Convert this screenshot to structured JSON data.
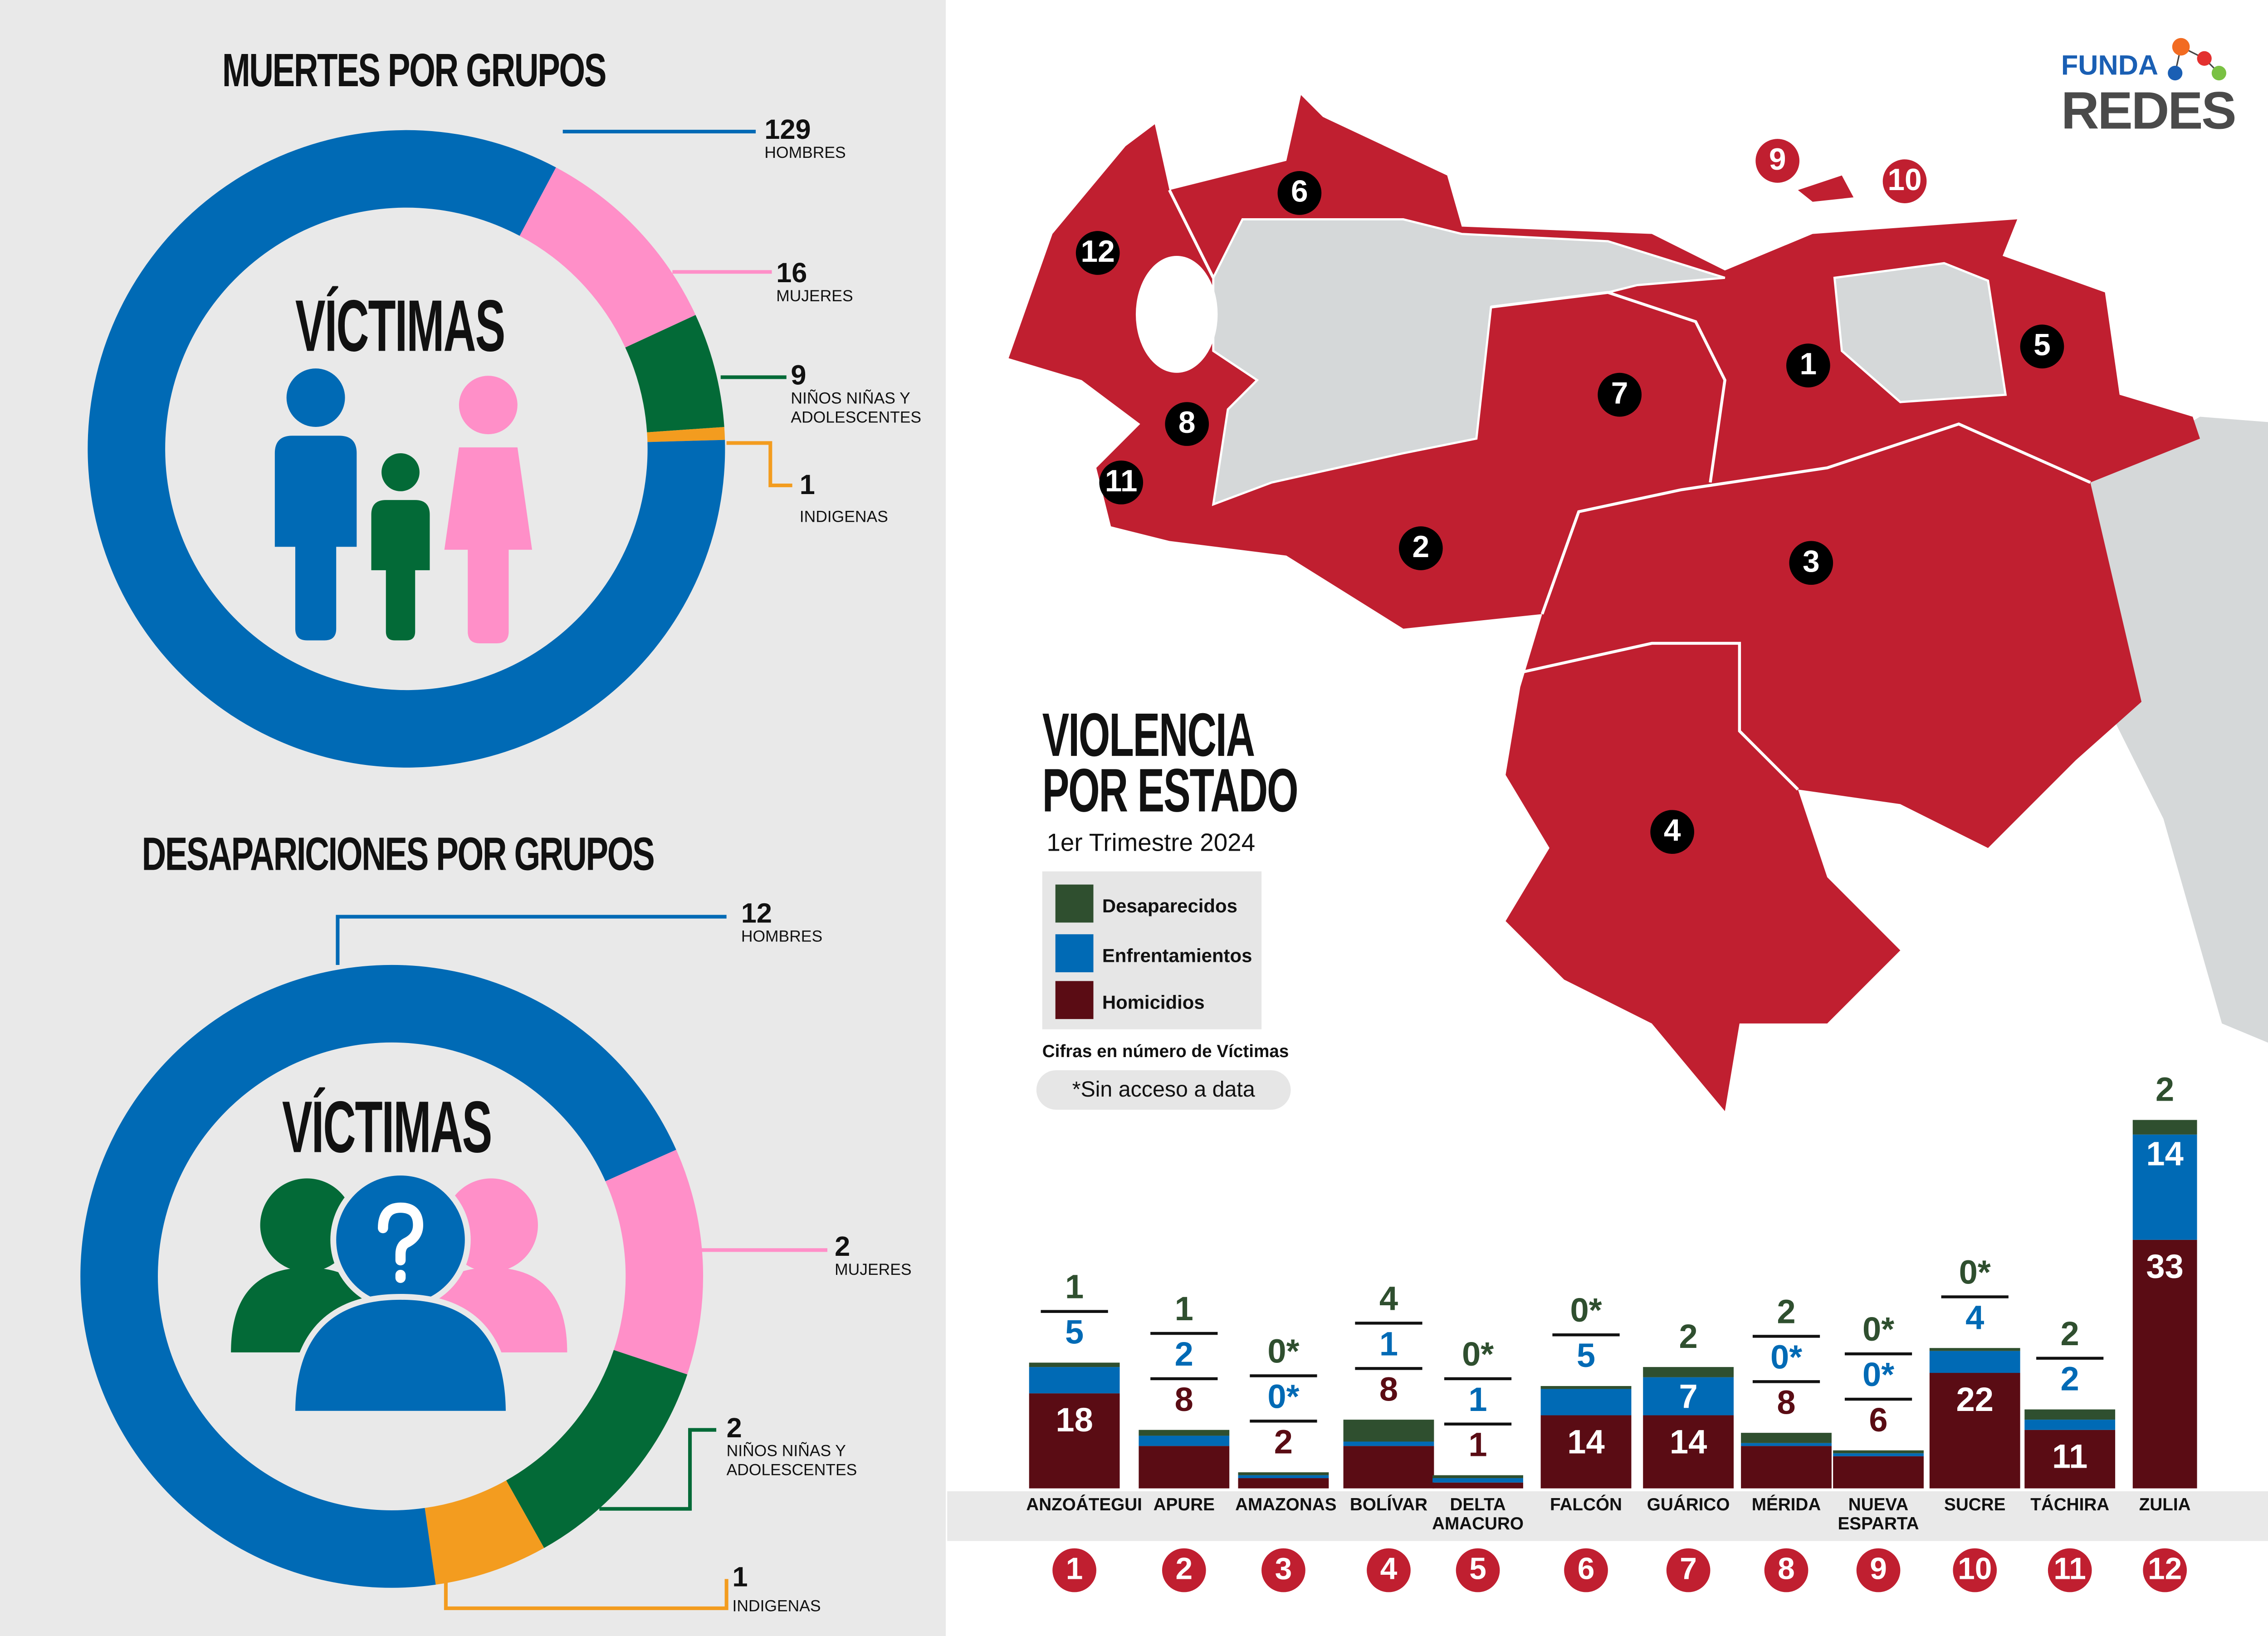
{
  "deaths": {
    "title": "MUERTES POR GRUPOS",
    "center_label": "VÍCTIMAS",
    "groups": [
      {
        "value": 129,
        "label": "HOMBRES",
        "color": "#006ab5"
      },
      {
        "value": 16,
        "label": "MUJERES",
        "color": "#ff8fc8"
      },
      {
        "value": 9,
        "label": "NIÑOS NIÑAS Y ADOLESCENTES",
        "color": "#036a37"
      },
      {
        "value": 1,
        "label": "INDIGENAS",
        "color": "#f39c1f"
      }
    ]
  },
  "disappearances": {
    "title": "DESAPARICIONES POR GRUPOS",
    "center_label": "VÍCTIMAS",
    "groups": [
      {
        "value": 12,
        "label": "HOMBRES",
        "color": "#006ab5"
      },
      {
        "value": 2,
        "label": "MUJERES",
        "color": "#ff8fc8"
      },
      {
        "value": 2,
        "label": "NIÑOS NIÑAS Y ADOLESCENTES",
        "color": "#036a37"
      },
      {
        "value": 1,
        "label": "INDIGENAS",
        "color": "#f39c1f"
      }
    ]
  },
  "logo": {
    "line1": "FUNDA",
    "line2": "REDES"
  },
  "map": {
    "title_line1": "VIOLENCIA",
    "title_line2": "POR ESTADO",
    "subtitle": "1er Trimestre 2024",
    "legend": [
      {
        "label": "Desaparecidos",
        "color": "#2f4f2f"
      },
      {
        "label": "Enfrentamientos",
        "color": "#006ab5"
      },
      {
        "label": "Homicidios",
        "color": "#5a0c14"
      }
    ],
    "note": "Cifras en número de Víctimas",
    "no_access": "*Sin acceso a data",
    "markers": [
      "1",
      "2",
      "3",
      "4",
      "5",
      "6",
      "7",
      "8",
      "9",
      "10",
      "11",
      "12"
    ]
  },
  "chart_data": {
    "type": "bar",
    "stacked": true,
    "title": "VIOLENCIA POR ESTADO",
    "categories": [
      "ANZOÁTEGUI",
      "APURE",
      "AMAZONAS",
      "BOLÍVAR",
      "DELTA AMACURO",
      "FALCÓN",
      "GUÁRICO",
      "MÉRIDA",
      "NUEVA ESPARTA",
      "SUCRE",
      "TÁCHIRA",
      "ZULIA"
    ],
    "numbers": [
      "1",
      "2",
      "3",
      "4",
      "5",
      "6",
      "7",
      "8",
      "9",
      "10",
      "11",
      "12"
    ],
    "series": [
      {
        "name": "Homicidios",
        "color": "#5a0c14",
        "values": [
          "18",
          "8",
          "2",
          "8",
          "1",
          "14",
          "14",
          "8",
          "6",
          "22",
          "11",
          "33"
        ]
      },
      {
        "name": "Enfrentamientos",
        "color": "#006ab5",
        "values": [
          "5",
          "2",
          "0*",
          "1",
          "1",
          "5",
          "7",
          "0*",
          "0*",
          "4",
          "2",
          "14"
        ]
      },
      {
        "name": "Desaparecidos",
        "color": "#2f4f2f",
        "values": [
          "1",
          "1",
          "0*",
          "4",
          "0*",
          "0*",
          "2",
          "2",
          "0*",
          "0*",
          "2",
          "2"
        ]
      }
    ]
  }
}
